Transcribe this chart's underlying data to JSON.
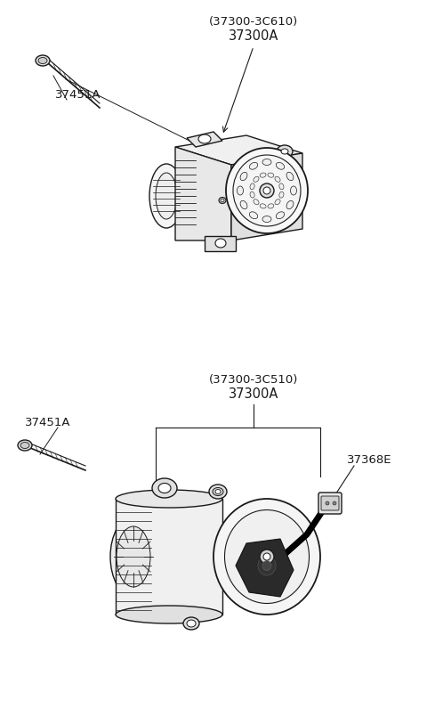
{
  "bg_color": "#ffffff",
  "line_color": "#1a1a1a",
  "label_color": "#1a1a1a",
  "diagram1": {
    "part_label_top": "(37300-3C610)",
    "part_label_main": "37300A",
    "bolt_label": "37451A"
  },
  "diagram2": {
    "part_label_top": "(37300-3C510)",
    "part_label_main": "37300A",
    "bolt_label": "37451A",
    "connector_label": "37368E"
  }
}
